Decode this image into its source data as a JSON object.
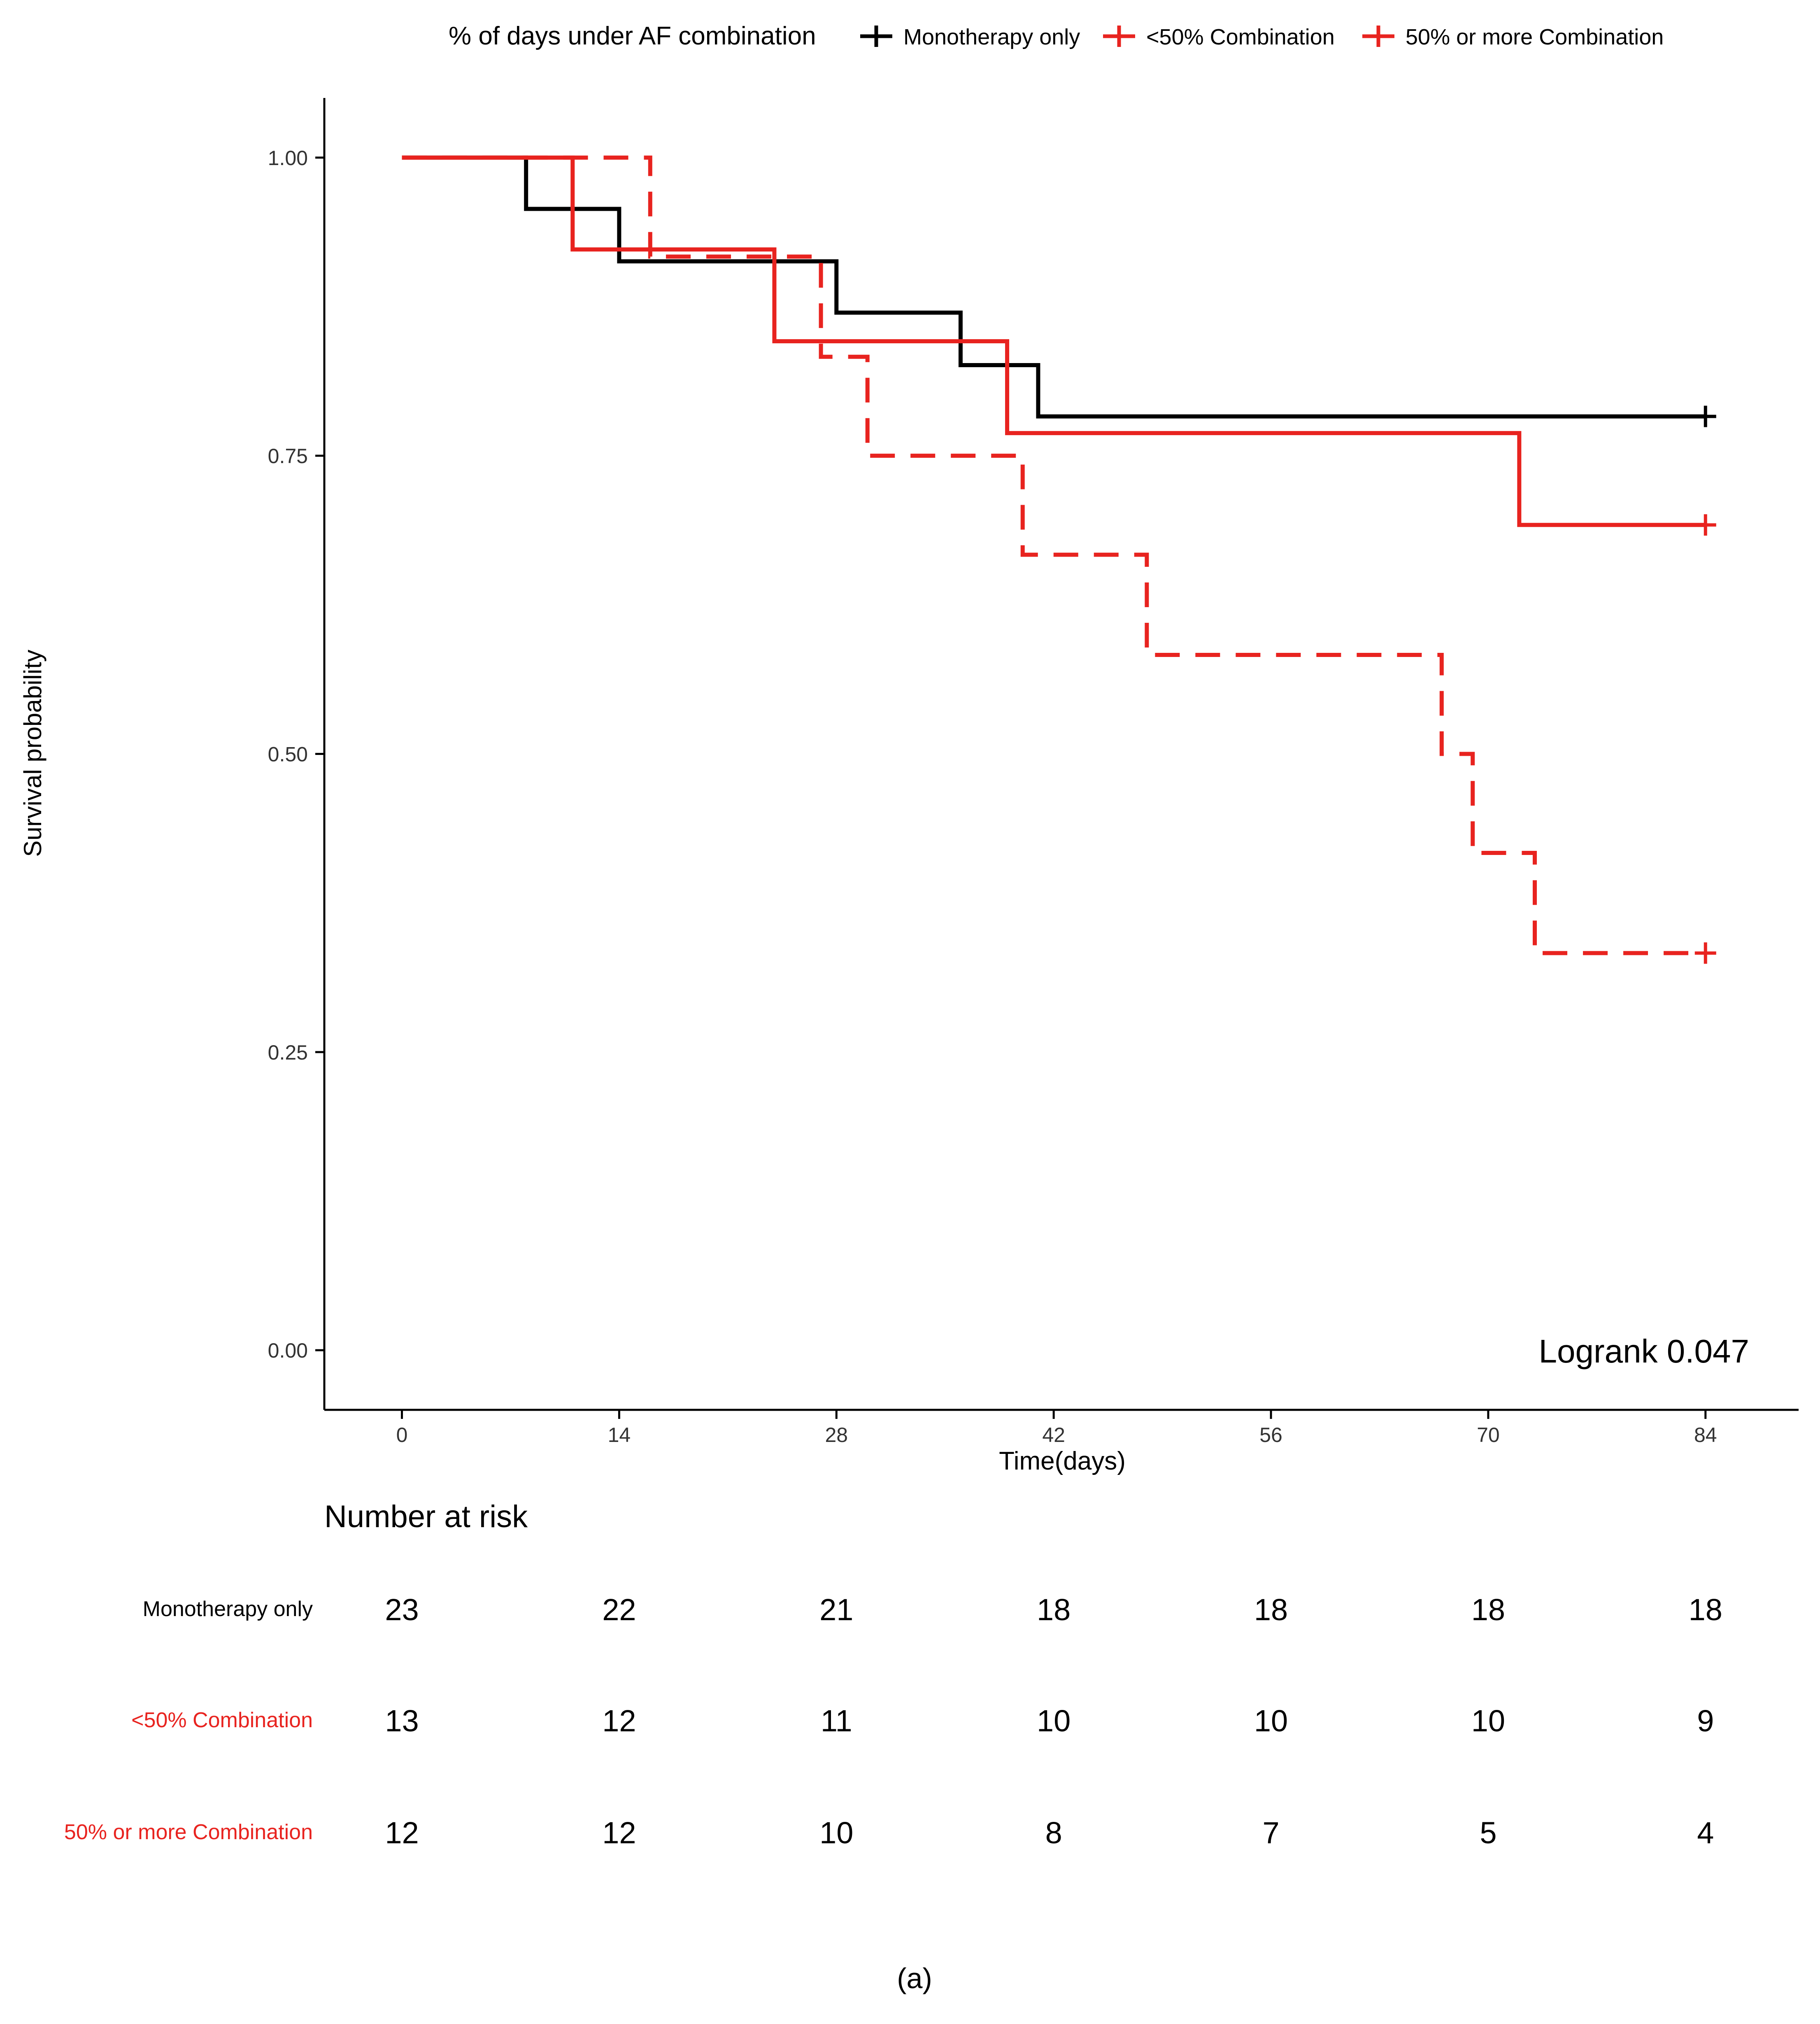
{
  "chart_data": {
    "type": "line",
    "subtype": "kaplan-meier-step",
    "legend": {
      "title": "% of days under AF combination",
      "placement": "top",
      "entries": [
        "Monotherapy only",
        "<50% Combination",
        "50% or more Combination"
      ]
    },
    "xlabel": "Time(days)",
    "ylabel": "Survival probability",
    "xlim": [
      -5,
      90
    ],
    "ylim": [
      -0.05,
      1.05
    ],
    "xticks": [
      0,
      14,
      28,
      42,
      56,
      70,
      84
    ],
    "yticks": [
      0.0,
      0.25,
      0.5,
      0.75,
      1.0
    ],
    "ytick_labels": [
      "0.00",
      "0.25",
      "0.50",
      "0.75",
      "1.00"
    ],
    "xtick_labels": [
      "0",
      "14",
      "28",
      "42",
      "56",
      "70",
      "84"
    ],
    "grid": false,
    "annotation": "Logrank 0.047",
    "series": [
      {
        "name": "Monotherapy only",
        "color": "#000000",
        "dash": "solid",
        "steps": [
          [
            0,
            1.0
          ],
          [
            8,
            0.957
          ],
          [
            14,
            0.913
          ],
          [
            28,
            0.87
          ],
          [
            36,
            0.826
          ],
          [
            41,
            0.783
          ]
        ],
        "end": 84,
        "censor": [
          [
            84,
            0.783
          ]
        ]
      },
      {
        "name": "<50% Combination",
        "color": "#e8231f",
        "dash": "solid",
        "steps": [
          [
            0,
            1.0
          ],
          [
            11,
            0.923
          ],
          [
            24,
            0.846
          ],
          [
            39,
            0.769
          ],
          [
            72,
            0.692
          ]
        ],
        "end": 84,
        "censor": [
          [
            84,
            0.692
          ]
        ]
      },
      {
        "name": "50% or more Combination",
        "color": "#e8231f",
        "dash": "dashed",
        "steps": [
          [
            0,
            1.0
          ],
          [
            16,
            0.917
          ],
          [
            27,
            0.833
          ],
          [
            30,
            0.75
          ],
          [
            40,
            0.667
          ],
          [
            48,
            0.583
          ],
          [
            67,
            0.5
          ],
          [
            69,
            0.417
          ],
          [
            73,
            0.333
          ]
        ],
        "end": 84,
        "censor": [
          [
            84,
            0.333
          ]
        ]
      }
    ],
    "risk_table": {
      "title": "Number at risk",
      "times": [
        0,
        14,
        28,
        42,
        56,
        70,
        84
      ],
      "rows": [
        {
          "label": "Monotherapy only",
          "color": "#000000",
          "values": [
            "23",
            "22",
            "21",
            "18",
            "18",
            "18",
            "18"
          ]
        },
        {
          "label": "<50% Combination",
          "color": "#e8231f",
          "values": [
            "13",
            "12",
            "11",
            "10",
            "10",
            "10",
            "9"
          ]
        },
        {
          "label": "50% or more Combination",
          "color": "#e8231f",
          "values": [
            "12",
            "12",
            "10",
            "8",
            "7",
            "5",
            "4"
          ]
        }
      ]
    }
  },
  "caption": "(a)"
}
